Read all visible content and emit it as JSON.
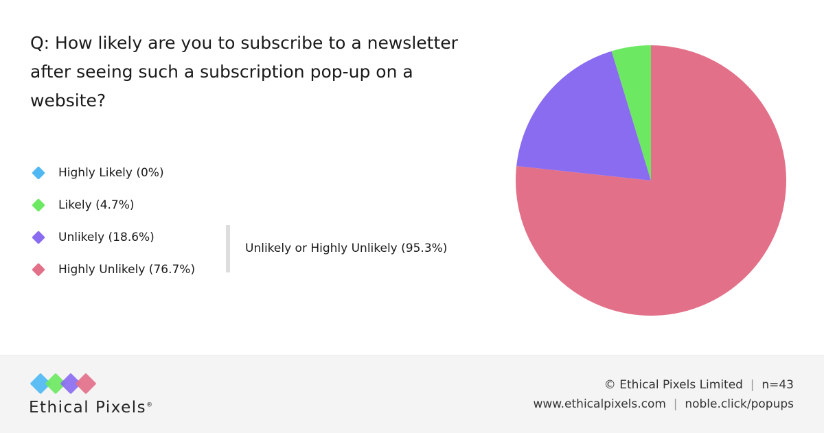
{
  "question": "Q: How likely are you to subscribe to a newsletter after seeing such a subscription pop-up on a website?",
  "chart_data": {
    "type": "pie",
    "categories": [
      "Highly Likely",
      "Likely",
      "Unlikely",
      "Highly Unlikely"
    ],
    "values": [
      0,
      4.7,
      18.6,
      76.7
    ],
    "legend_labels": [
      "Highly Likely (0%)",
      "Likely (4.7%)",
      "Unlikely (18.6%)",
      "Highly Unlikely (76.7%)"
    ],
    "colors": [
      "#4fb8f2",
      "#6ce862",
      "#8a6cf1",
      "#e37089"
    ],
    "group_annotation": "Unlikely or Highly Unlikely (95.3%)",
    "legend": "left"
  },
  "footer": {
    "brand": "Ethical Pixels",
    "registered": "®",
    "copyright": "© Ethical Pixels Limited",
    "sample": "n=43",
    "website": "www.ethicalpixels.com",
    "link": "noble.click/popups",
    "sep": "|"
  }
}
